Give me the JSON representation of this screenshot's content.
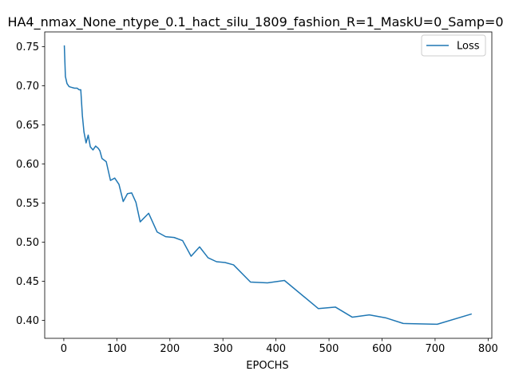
{
  "chart_data": {
    "type": "line",
    "title": "HA4_nmax_None_ntype_0.1_hact_silu_1809_fashion_R=1_MaskU=0_Samp=0",
    "xlabel": "EPOCHS",
    "ylabel": "",
    "xlim": [
      -36,
      807
    ],
    "ylim": [
      0.377,
      0.769
    ],
    "xticks": [
      0,
      100,
      200,
      300,
      400,
      500,
      600,
      700,
      800
    ],
    "yticks": [
      0.4,
      0.45,
      0.5,
      0.55,
      0.6,
      0.65,
      0.7,
      0.75
    ],
    "ytick_labels": [
      "0.40",
      "0.45",
      "0.50",
      "0.55",
      "0.60",
      "0.65",
      "0.70",
      "0.75"
    ],
    "grid": false,
    "legend_position": "top-right",
    "series": [
      {
        "name": "Loss",
        "color": "#1f77b4",
        "points": [
          [
            1,
            0.751
          ],
          [
            3,
            0.712
          ],
          [
            6,
            0.703
          ],
          [
            10,
            0.699
          ],
          [
            15,
            0.698
          ],
          [
            20,
            0.697
          ],
          [
            25,
            0.697
          ],
          [
            29,
            0.695
          ],
          [
            32,
            0.695
          ],
          [
            35,
            0.662
          ],
          [
            38,
            0.641
          ],
          [
            42,
            0.627
          ],
          [
            46,
            0.637
          ],
          [
            50,
            0.622
          ],
          [
            55,
            0.618
          ],
          [
            60,
            0.623
          ],
          [
            65,
            0.62
          ],
          [
            68,
            0.617
          ],
          [
            72,
            0.607
          ],
          [
            76,
            0.605
          ],
          [
            80,
            0.603
          ],
          [
            88,
            0.579
          ],
          [
            96,
            0.582
          ],
          [
            104,
            0.574
          ],
          [
            112,
            0.552
          ],
          [
            120,
            0.562
          ],
          [
            128,
            0.563
          ],
          [
            136,
            0.551
          ],
          [
            144,
            0.526
          ],
          [
            160,
            0.537
          ],
          [
            176,
            0.513
          ],
          [
            192,
            0.507
          ],
          [
            208,
            0.506
          ],
          [
            224,
            0.502
          ],
          [
            240,
            0.482
          ],
          [
            256,
            0.494
          ],
          [
            272,
            0.48
          ],
          [
            288,
            0.475
          ],
          [
            304,
            0.474
          ],
          [
            320,
            0.471
          ],
          [
            352,
            0.449
          ],
          [
            384,
            0.448
          ],
          [
            416,
            0.451
          ],
          [
            480,
            0.415
          ],
          [
            512,
            0.417
          ],
          [
            544,
            0.404
          ],
          [
            576,
            0.407
          ],
          [
            608,
            0.403
          ],
          [
            640,
            0.396
          ],
          [
            704,
            0.395
          ],
          [
            768,
            0.408
          ]
        ]
      }
    ]
  }
}
